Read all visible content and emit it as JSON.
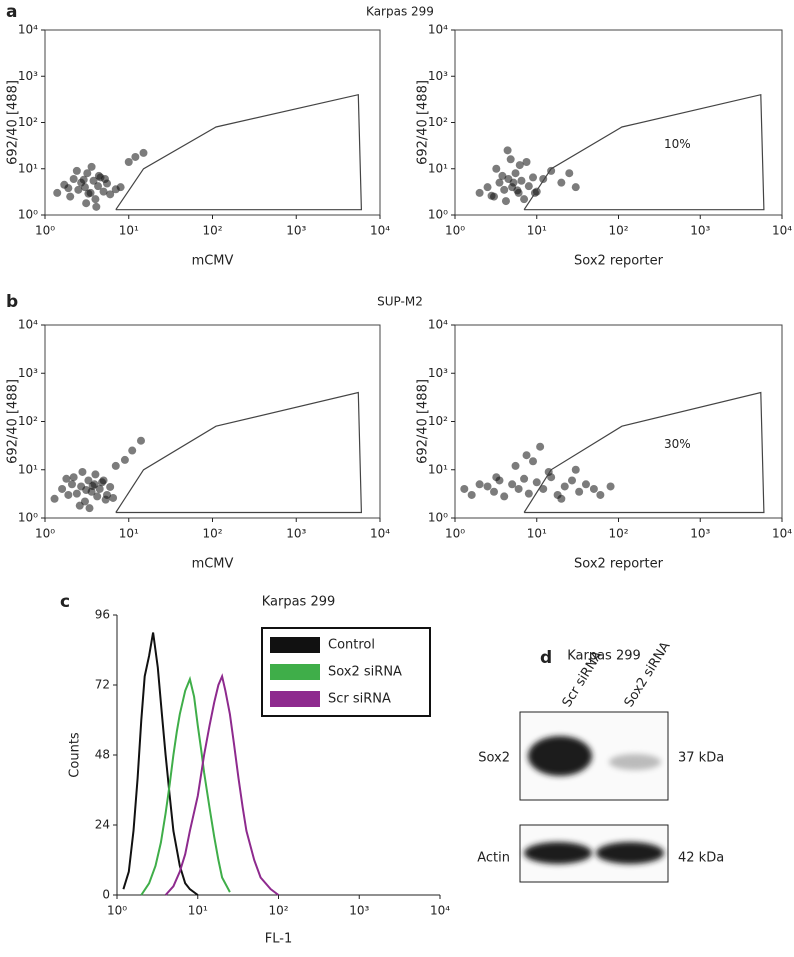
{
  "figure": {
    "panels": [
      {
        "label": "a",
        "title": "Karpas 299"
      },
      {
        "label": "b",
        "title": "SUP-M2"
      },
      {
        "label": "c"
      }
    ],
    "blot": {
      "label": "d",
      "title": "Karpas 299",
      "lanes": [
        "Scr siRNA",
        "Sox2 siRNA"
      ],
      "rows": [
        {
          "name": "Sox2",
          "size": "37 kDa"
        },
        {
          "name": "Actin",
          "size": "42 kDa"
        }
      ]
    }
  },
  "chart_data": [
    {
      "type": "scatter",
      "xlabel": "mCMV",
      "ylabel": "692/40 [488]",
      "log_x": true,
      "log_y": true,
      "xlim": [
        1,
        10000
      ],
      "ylim": [
        1,
        10000
      ],
      "xticks": [
        {
          "value": 1,
          "label": "10⁰"
        },
        {
          "value": 10,
          "label": "10¹"
        },
        {
          "value": 100,
          "label": "10²"
        },
        {
          "value": 1000,
          "label": "10³"
        },
        {
          "value": 10000,
          "label": "10⁴"
        }
      ],
      "yticks": [
        {
          "value": 1,
          "label": "10⁰"
        },
        {
          "value": 10,
          "label": "10¹"
        },
        {
          "value": 100,
          "label": "10²"
        },
        {
          "value": 1000,
          "label": "10³"
        },
        {
          "value": 10000,
          "label": "10⁴"
        }
      ],
      "color": "#111111",
      "x": [
        1.4,
        1.7,
        2,
        2.2,
        2.5,
        2.7,
        3,
        3.2,
        3.5,
        3.8,
        4,
        4.3,
        4.6,
        5,
        5.5,
        6,
        7,
        2.4,
        3.1,
        3.6,
        4.4,
        2.9,
        3.3,
        5.2,
        8,
        10,
        12,
        15,
        1.9,
        4.1
      ],
      "y": [
        3,
        4.5,
        2.5,
        6,
        3.5,
        5,
        4,
        8,
        3,
        5.5,
        2.2,
        4.2,
        6.5,
        3.2,
        4.8,
        2.8,
        3.6,
        9,
        1.8,
        11,
        7,
        5.8,
        2.9,
        6,
        4,
        14,
        18,
        22,
        3.8,
        1.5
      ],
      "gate": {
        "x": [
          7,
          15,
          110,
          5500,
          6000,
          7
        ],
        "y": [
          1.3,
          10,
          80,
          400,
          1.3,
          1.3
        ]
      }
    },
    {
      "type": "scatter",
      "xlabel": "Sox2 reporter",
      "ylabel": "692/40 [488]",
      "log_x": true,
      "log_y": true,
      "xlim": [
        1,
        10000
      ],
      "ylim": [
        1,
        10000
      ],
      "xticks": [
        {
          "value": 1,
          "label": "10⁰"
        },
        {
          "value": 10,
          "label": "10¹"
        },
        {
          "value": 100,
          "label": "10²"
        },
        {
          "value": 1000,
          "label": "10³"
        },
        {
          "value": 10000,
          "label": "10⁴"
        }
      ],
      "yticks": [
        {
          "value": 1,
          "label": "10⁰"
        },
        {
          "value": 10,
          "label": "10¹"
        },
        {
          "value": 100,
          "label": "10²"
        },
        {
          "value": 1000,
          "label": "10³"
        },
        {
          "value": 10000,
          "label": "10⁴"
        }
      ],
      "color": "#111111",
      "x": [
        2,
        2.5,
        3,
        3.5,
        4,
        4.5,
        5,
        5.5,
        6,
        6.5,
        7,
        8,
        9,
        10,
        3.2,
        4.2,
        5.2,
        6.2,
        4.8,
        3.8,
        12,
        15,
        20,
        30,
        2.8,
        5.8,
        7.5,
        4.4,
        9.5,
        25
      ],
      "y": [
        3,
        4,
        2.5,
        5,
        3.5,
        6,
        4,
        8,
        3,
        5.5,
        2.2,
        4.2,
        6.5,
        3.2,
        10,
        2,
        5,
        12,
        16,
        7,
        6,
        9,
        5,
        4,
        2.6,
        3.4,
        14,
        25,
        3,
        8
      ],
      "gate": {
        "x": [
          7,
          15,
          110,
          5500,
          6000,
          7
        ],
        "y": [
          1.3,
          10,
          80,
          400,
          1.3,
          1.3
        ]
      },
      "annotation": "10%"
    },
    {
      "type": "scatter",
      "xlabel": "mCMV",
      "ylabel": "692/40 [488]",
      "log_x": true,
      "log_y": true,
      "xlim": [
        1,
        10000
      ],
      "ylim": [
        1,
        10000
      ],
      "xticks": [
        {
          "value": 1,
          "label": "10⁰"
        },
        {
          "value": 10,
          "label": "10¹"
        },
        {
          "value": 100,
          "label": "10²"
        },
        {
          "value": 1000,
          "label": "10³"
        },
        {
          "value": 10000,
          "label": "10⁴"
        }
      ],
      "yticks": [
        {
          "value": 1,
          "label": "10⁰"
        },
        {
          "value": 10,
          "label": "10¹"
        },
        {
          "value": 100,
          "label": "10²"
        },
        {
          "value": 1000,
          "label": "10³"
        },
        {
          "value": 10000,
          "label": "10⁴"
        }
      ],
      "color": "#111111",
      "x": [
        1.3,
        1.6,
        1.9,
        2.1,
        2.4,
        2.7,
        3,
        3.3,
        3.6,
        3.9,
        4.2,
        4.5,
        5,
        5.5,
        6,
        6.5,
        2.2,
        2.8,
        3.4,
        4,
        4.8,
        1.8,
        3.1,
        5.3,
        7,
        9,
        11,
        14,
        2.6,
        3.7
      ],
      "y": [
        2.5,
        4,
        3,
        5,
        3.2,
        4.5,
        2.2,
        6,
        3.5,
        5,
        2.8,
        4,
        6,
        3,
        4.4,
        2.6,
        7,
        9,
        1.6,
        8,
        5.5,
        6.5,
        3.8,
        2.4,
        12,
        16,
        25,
        40,
        1.8,
        4.6
      ],
      "gate": {
        "x": [
          7,
          15,
          110,
          5500,
          6000,
          7
        ],
        "y": [
          1.3,
          10,
          80,
          400,
          1.3,
          1.3
        ]
      }
    },
    {
      "type": "scatter",
      "xlabel": "Sox2 reporter",
      "ylabel": "692/40 [488]",
      "log_x": true,
      "log_y": true,
      "xlim": [
        1,
        10000
      ],
      "ylim": [
        1,
        10000
      ],
      "xticks": [
        {
          "value": 1,
          "label": "10⁰"
        },
        {
          "value": 10,
          "label": "10¹"
        },
        {
          "value": 100,
          "label": "10²"
        },
        {
          "value": 1000,
          "label": "10³"
        },
        {
          "value": 10000,
          "label": "10⁴"
        }
      ],
      "yticks": [
        {
          "value": 1,
          "label": "10⁰"
        },
        {
          "value": 10,
          "label": "10¹"
        },
        {
          "value": 100,
          "label": "10²"
        },
        {
          "value": 1000,
          "label": "10³"
        },
        {
          "value": 10000,
          "label": "10⁴"
        }
      ],
      "color": "#111111",
      "x": [
        1.3,
        1.6,
        2,
        2.5,
        3,
        3.5,
        4,
        5,
        6,
        7,
        8,
        10,
        12,
        15,
        18,
        22,
        27,
        33,
        40,
        50,
        60,
        80,
        5.5,
        9,
        14,
        20,
        3.2,
        7.5,
        11,
        30
      ],
      "y": [
        4,
        3,
        5,
        4.5,
        3.5,
        6,
        2.8,
        5,
        4,
        6.5,
        3.2,
        5.5,
        4,
        7,
        3,
        4.5,
        6,
        3.5,
        5,
        4,
        3,
        4.5,
        12,
        15,
        9,
        2.5,
        7,
        20,
        30,
        10
      ],
      "gate": {
        "x": [
          7,
          15,
          110,
          5500,
          6000,
          7
        ],
        "y": [
          1.3,
          10,
          80,
          400,
          1.3,
          1.3
        ]
      },
      "annotation": "30%"
    },
    {
      "type": "line",
      "title": "Karpas 299",
      "xlabel": "FL-1",
      "ylabel": "Counts",
      "log_x": true,
      "xlim": [
        1,
        10000
      ],
      "ylim": [
        0,
        96
      ],
      "xticks": [
        {
          "value": 1,
          "label": "10⁰"
        },
        {
          "value": 10,
          "label": "10¹"
        },
        {
          "value": 100,
          "label": "10²"
        },
        {
          "value": 1000,
          "label": "10³"
        },
        {
          "value": 10000,
          "label": "10⁴"
        }
      ],
      "yticks": [
        0,
        24,
        48,
        72,
        96
      ],
      "legend": "upper right",
      "series": [
        {
          "name": "Control",
          "color": "#111111",
          "x": [
            1.2,
            1.4,
            1.6,
            1.8,
            2,
            2.2,
            2.5,
            2.8,
            3.2,
            3.6,
            4,
            4.5,
            5,
            6,
            7,
            8,
            10
          ],
          "values": [
            2,
            8,
            22,
            40,
            60,
            75,
            82,
            90,
            78,
            62,
            48,
            34,
            22,
            10,
            4,
            2,
            0
          ]
        },
        {
          "name": "Sox2 siRNA",
          "color": "#3fae49",
          "x": [
            2,
            2.5,
            3,
            3.5,
            4,
            4.5,
            5,
            5.5,
            6,
            7,
            8,
            9,
            10,
            11,
            12,
            14,
            16,
            18,
            20,
            25
          ],
          "values": [
            0,
            4,
            10,
            18,
            28,
            38,
            48,
            56,
            62,
            70,
            74,
            68,
            58,
            50,
            42,
            30,
            20,
            12,
            6,
            1
          ]
        },
        {
          "name": "Scr siRNA",
          "color": "#8e2a8e",
          "x": [
            4,
            5,
            6,
            7,
            8,
            10,
            12,
            14,
            16,
            18,
            20,
            22,
            25,
            28,
            32,
            36,
            40,
            50,
            60,
            80,
            100
          ],
          "values": [
            0,
            3,
            8,
            14,
            22,
            34,
            48,
            58,
            66,
            72,
            75,
            70,
            62,
            52,
            40,
            30,
            22,
            12,
            6,
            2,
            0
          ]
        }
      ]
    }
  ]
}
